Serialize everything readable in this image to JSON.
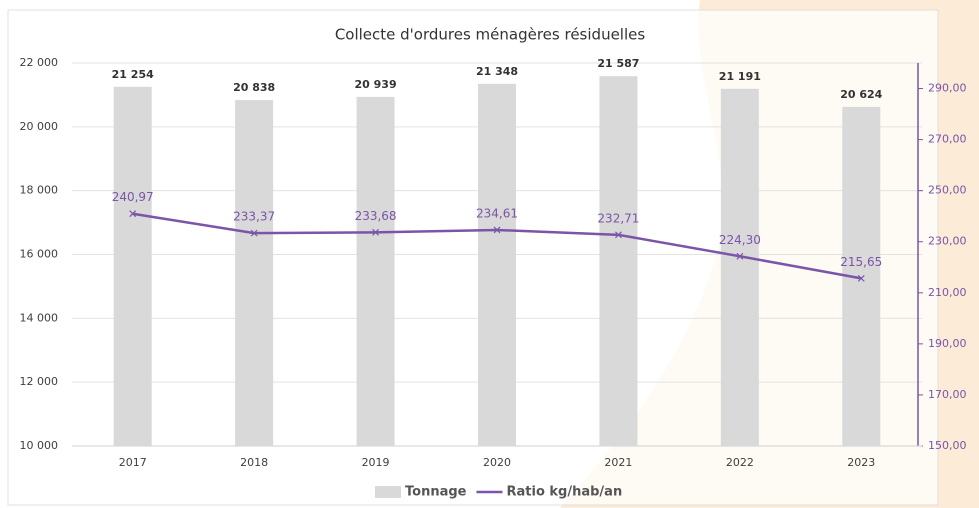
{
  "chart_data": {
    "type": "bar",
    "title": "Collecte d'ordures ménagères résiduelles",
    "categories": [
      "2017",
      "2018",
      "2019",
      "2020",
      "2021",
      "2022",
      "2023"
    ],
    "series": [
      {
        "name": "Tonnage",
        "color": "#d9d9d9",
        "values": [
          21254,
          20838,
          20939,
          21348,
          21587,
          21191,
          20624
        ],
        "value_labels": [
          "21 254",
          "20 838",
          "20 939",
          "21 348",
          "21 587",
          "21 191",
          "20 624"
        ]
      },
      {
        "name": "Ratio kg/hab/an",
        "type": "line",
        "axis": "y2",
        "color": "#7a55a8",
        "values": [
          240.97,
          233.37,
          233.68,
          234.61,
          232.71,
          224.3,
          215.65
        ],
        "value_labels": [
          "240,97",
          "233,37",
          "233,68",
          "234,61",
          "232,71",
          "224,30",
          "215,65"
        ]
      }
    ],
    "ylim": [
      10000,
      22000
    ],
    "yticks": [
      {
        "value": 10000,
        "label": "10 000"
      },
      {
        "value": 12000,
        "label": "12 000"
      },
      {
        "value": 14000,
        "label": "14 000"
      },
      {
        "value": 16000,
        "label": "16 000"
      },
      {
        "value": 18000,
        "label": "18 000"
      },
      {
        "value": 20000,
        "label": "20 000"
      },
      {
        "value": 22000,
        "label": "22 000"
      }
    ],
    "y2lim": [
      150,
      300
    ],
    "y2ticks": [
      {
        "value": 150,
        "label": "150,00"
      },
      {
        "value": 170,
        "label": "170,00"
      },
      {
        "value": 190,
        "label": "190,00"
      },
      {
        "value": 210,
        "label": "210,00"
      },
      {
        "value": 230,
        "label": "230,00"
      },
      {
        "value": 250,
        "label": "250,00"
      },
      {
        "value": 270,
        "label": "270,00"
      },
      {
        "value": 290,
        "label": "290,00"
      }
    ],
    "grid": true,
    "legend": "bottom"
  }
}
